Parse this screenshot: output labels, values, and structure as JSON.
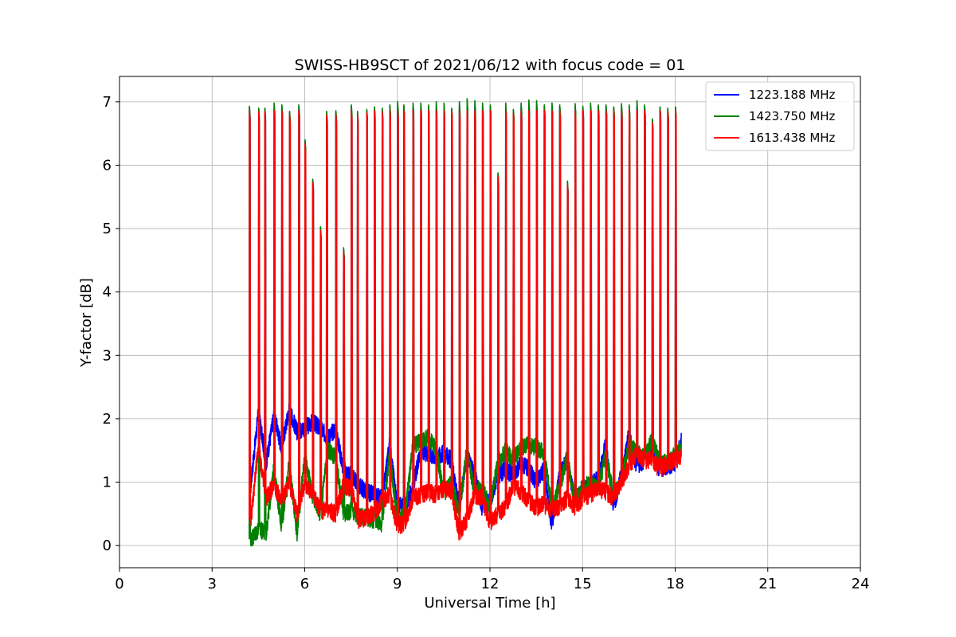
{
  "chart_data": {
    "type": "line",
    "title": "SWISS-HB9SCT of 2021/06/12 with focus code = 01",
    "xlabel": "Universal Time [h]",
    "ylabel": "Y-factor [dB]",
    "xlim": [
      0,
      24
    ],
    "ylim": [
      -0.35,
      7.4
    ],
    "xticks": [
      0,
      3,
      6,
      9,
      12,
      15,
      18,
      21,
      24
    ],
    "yticks": [
      0,
      1,
      2,
      3,
      4,
      5,
      6,
      7
    ],
    "grid": true,
    "legend_position": "top-right",
    "spikes": {
      "times": [
        4.2,
        4.5,
        4.7,
        5.0,
        5.25,
        5.5,
        5.8,
        6.0,
        6.25,
        6.5,
        6.7,
        7.0,
        7.25,
        7.5,
        7.7,
        8.0,
        8.25,
        8.5,
        8.75,
        9.0,
        9.2,
        9.5,
        9.75,
        10.0,
        10.25,
        10.5,
        10.75,
        11.0,
        11.25,
        11.5,
        11.75,
        12.0,
        12.25,
        12.5,
        12.75,
        13.0,
        13.25,
        13.5,
        13.75,
        14.0,
        14.25,
        14.5,
        14.75,
        15.0,
        15.25,
        15.5,
        15.75,
        16.0,
        16.25,
        16.5,
        16.75,
        17.0,
        17.25,
        17.5,
        17.75,
        18.0
      ],
      "peak_values": [
        6.93,
        6.9,
        6.9,
        6.98,
        6.95,
        6.85,
        6.95,
        6.4,
        5.78,
        5.03,
        6.85,
        6.86,
        4.7,
        6.95,
        6.85,
        6.88,
        6.92,
        6.9,
        6.95,
        7.0,
        6.95,
        6.98,
        6.98,
        6.95,
        7.0,
        6.98,
        6.9,
        7.0,
        7.05,
        7.02,
        6.98,
        6.95,
        5.88,
        6.98,
        6.88,
        6.98,
        7.03,
        7.02,
        6.95,
        6.98,
        6.95,
        5.75,
        6.97,
        6.93,
        6.98,
        6.95,
        6.95,
        6.92,
        6.97,
        6.95,
        7.02,
        6.95,
        6.73,
        6.92,
        6.9,
        6.92
      ]
    },
    "series": [
      {
        "name": "1223.188 MHz",
        "color": "#0000ff",
        "x": [
          4.25,
          4.5,
          4.75,
          5.0,
          5.25,
          5.5,
          5.75,
          6.0,
          6.25,
          6.5,
          6.75,
          7.0,
          7.25,
          7.5,
          7.75,
          8.0,
          8.25,
          8.5,
          8.75,
          9.0,
          9.25,
          9.5,
          9.75,
          10.0,
          10.25,
          10.5,
          10.75,
          11.0,
          11.25,
          11.5,
          11.75,
          12.0,
          12.25,
          12.5,
          12.75,
          13.0,
          13.25,
          13.5,
          13.75,
          14.0,
          14.25,
          14.5,
          14.75,
          15.0,
          15.25,
          15.5,
          15.75,
          16.0,
          16.25,
          16.5,
          16.75,
          17.0,
          17.25,
          17.5,
          17.75,
          18.0,
          18.2
        ],
        "y": [
          0.95,
          2.1,
          1.3,
          2.05,
          1.55,
          2.15,
          1.8,
          1.85,
          1.95,
          1.85,
          1.7,
          1.85,
          1.2,
          1.1,
          0.95,
          0.85,
          0.8,
          0.75,
          1.6,
          0.65,
          0.6,
          0.9,
          1.5,
          1.45,
          1.4,
          1.45,
          1.35,
          0.6,
          1.4,
          1.15,
          0.6,
          0.7,
          1.1,
          1.2,
          1.1,
          1.3,
          1.2,
          1.0,
          1.2,
          0.3,
          1.1,
          1.35,
          0.7,
          0.9,
          0.95,
          1.05,
          1.6,
          0.6,
          1.1,
          1.75,
          1.25,
          1.35,
          1.5,
          1.2,
          1.25,
          1.3,
          1.65
        ]
      },
      {
        "name": "1423.750 MHz",
        "color": "#008000",
        "x": [
          4.25,
          4.5,
          4.75,
          5.0,
          5.25,
          5.5,
          5.75,
          6.0,
          6.25,
          6.5,
          6.75,
          7.0,
          7.25,
          7.5,
          7.75,
          8.0,
          8.25,
          8.5,
          8.75,
          9.0,
          9.25,
          9.5,
          9.75,
          10.0,
          10.25,
          10.5,
          10.75,
          11.0,
          11.25,
          11.5,
          11.75,
          12.0,
          12.25,
          12.5,
          12.75,
          13.0,
          13.25,
          13.5,
          13.75,
          14.0,
          14.25,
          14.5,
          14.75,
          15.0,
          15.25,
          15.5,
          15.75,
          16.0,
          16.25,
          16.5,
          16.75,
          17.0,
          17.25,
          17.5,
          17.75,
          18.0,
          18.2
        ],
        "y": [
          0.1,
          0.25,
          0.2,
          1.2,
          0.3,
          1.3,
          0.2,
          1.4,
          0.8,
          0.5,
          1.5,
          1.4,
          0.5,
          0.55,
          0.45,
          0.45,
          0.4,
          0.35,
          1.45,
          0.4,
          0.5,
          1.55,
          1.65,
          1.7,
          1.55,
          0.8,
          1.0,
          0.5,
          1.5,
          0.85,
          0.9,
          0.6,
          1.3,
          1.5,
          1.35,
          1.55,
          1.6,
          1.55,
          1.45,
          0.6,
          0.9,
          1.4,
          0.7,
          0.9,
          1.0,
          0.9,
          1.4,
          0.8,
          1.0,
          1.6,
          1.45,
          1.4,
          1.7,
          1.3,
          1.3,
          1.45,
          1.55
        ]
      },
      {
        "name": "1613.438 MHz",
        "color": "#ff0000",
        "x": [
          4.25,
          4.5,
          4.75,
          5.0,
          5.25,
          5.5,
          5.75,
          6.0,
          6.25,
          6.5,
          6.75,
          7.0,
          7.25,
          7.5,
          7.75,
          8.0,
          8.25,
          8.5,
          8.75,
          9.0,
          9.25,
          9.5,
          9.75,
          10.0,
          10.25,
          10.5,
          10.75,
          11.0,
          11.25,
          11.5,
          11.75,
          12.0,
          12.25,
          12.5,
          12.75,
          13.0,
          13.25,
          13.5,
          13.75,
          14.0,
          14.25,
          14.5,
          14.75,
          15.0,
          15.25,
          15.5,
          15.75,
          16.0,
          16.25,
          16.5,
          16.75,
          17.0,
          17.25,
          17.5,
          17.75,
          18.0,
          18.2
        ],
        "y": [
          0.4,
          1.55,
          0.75,
          0.95,
          0.7,
          1.0,
          0.5,
          0.95,
          0.85,
          0.55,
          0.55,
          0.5,
          0.95,
          0.9,
          0.4,
          0.45,
          0.5,
          0.7,
          0.8,
          0.3,
          0.35,
          0.75,
          0.8,
          0.85,
          0.8,
          0.9,
          0.85,
          0.2,
          0.4,
          0.8,
          0.75,
          0.35,
          0.5,
          0.6,
          0.95,
          0.85,
          0.7,
          0.6,
          0.65,
          0.55,
          0.6,
          0.75,
          0.6,
          0.75,
          0.8,
          0.9,
          0.85,
          0.75,
          1.0,
          1.25,
          1.45,
          1.35,
          1.35,
          1.2,
          1.3,
          1.35,
          1.4
        ]
      }
    ]
  }
}
